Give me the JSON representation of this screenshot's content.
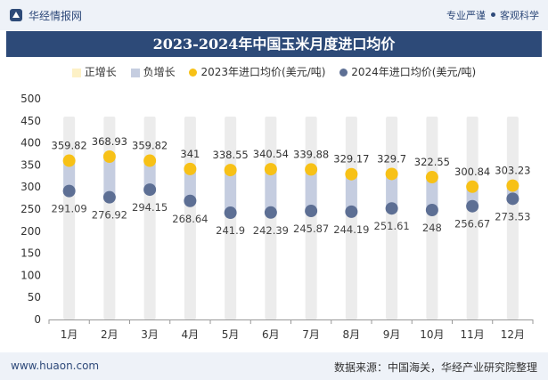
{
  "header": {
    "site_name": "华经情报网",
    "slogan_left": "专业严谨",
    "slogan_right": "客观科学"
  },
  "footer": {
    "url": "www.huaon.com",
    "source": "数据来源：中国海关，华经产业研究院整理"
  },
  "colors": {
    "title_bg": "#2d4a78",
    "positive_bar": "#fdf1c6",
    "negative_bar": "#c5cde0",
    "series_2023": "#f7c117",
    "series_2024": "#5d6f94",
    "bg_column": "#ececec"
  },
  "chart_data": {
    "type": "scatter",
    "title": "2023-2024年中国玉米月度进口均价",
    "legend": [
      "正增长",
      "负增长",
      "2023年进口均价(美元/吨)",
      "2024年进口均价(美元/吨)"
    ],
    "categories": [
      "1月",
      "2月",
      "3月",
      "4月",
      "5月",
      "6月",
      "7月",
      "8月",
      "9月",
      "10月",
      "11月",
      "12月"
    ],
    "series": [
      {
        "name": "2023年进口均价(美元/吨)",
        "values": [
          359.82,
          368.93,
          359.82,
          341,
          338.55,
          340.54,
          339.88,
          329.17,
          329.7,
          322.55,
          300.84,
          303.23
        ]
      },
      {
        "name": "2024年进口均价(美元/吨)",
        "values": [
          291.09,
          276.92,
          294.15,
          268.64,
          241.9,
          242.39,
          245.87,
          244.19,
          251.61,
          248,
          256.67,
          273.53
        ]
      }
    ],
    "ylim": [
      0,
      500
    ],
    "yticks": [
      0,
      50,
      100,
      150,
      200,
      250,
      300,
      350,
      400,
      450,
      500
    ],
    "legend_position": "top"
  }
}
